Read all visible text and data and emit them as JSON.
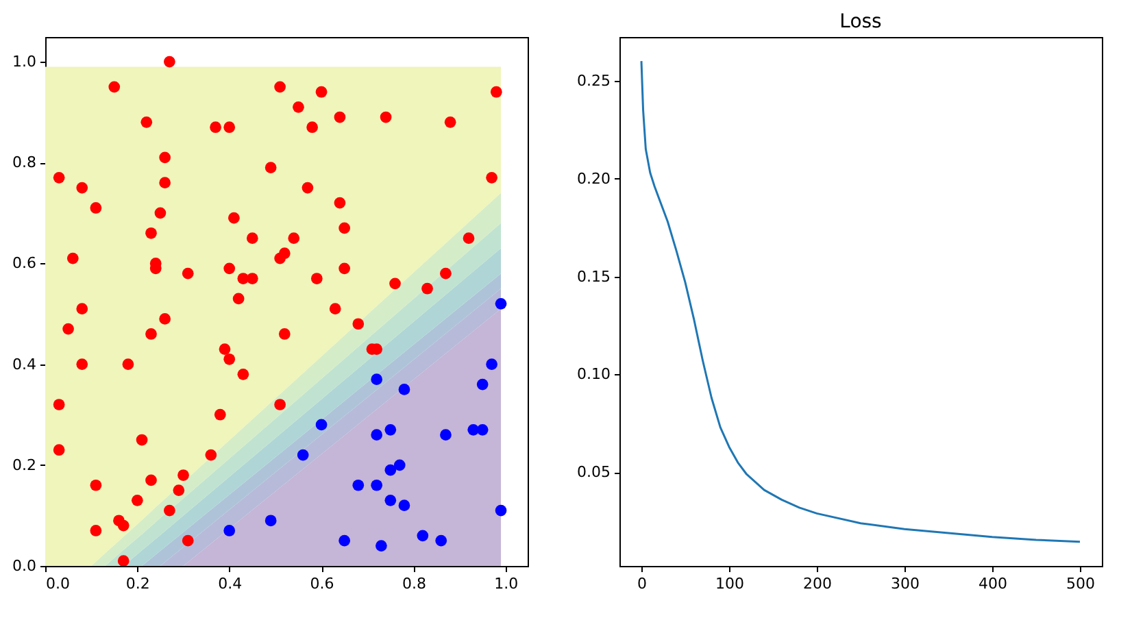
{
  "chart_data": [
    {
      "type": "scatter",
      "stacked": true,
      "grid": false,
      "xlim": [
        0,
        1.048
      ],
      "ylim": [
        0,
        1.049
      ],
      "xticks": [
        {
          "value": 0,
          "label": "0.0"
        },
        0.2,
        0.4,
        0.6,
        0.8,
        {
          "value": 1,
          "label": "1.0"
        }
      ],
      "yticks": [
        {
          "value": 0,
          "label": "0.0"
        },
        0.2,
        0.4,
        0.6,
        0.8,
        {
          "value": 1,
          "label": "1.0"
        }
      ],
      "series": [
        {
          "type": "area",
          "color": "#c5b5d6",
          "x": [
            0,
            0.1,
            0.13,
            0.17,
            0.21,
            0.25,
            0.3,
            0.99
          ],
          "values": [
            0,
            0,
            0,
            0,
            0,
            0,
            0,
            0.51
          ]
        },
        {
          "type": "area",
          "color": "#b7bad8",
          "x": [
            0,
            0.1,
            0.13,
            0.17,
            0.21,
            0.25,
            0.3,
            0.99
          ],
          "values": [
            0,
            0,
            0,
            0,
            0,
            0,
            0.037,
            0.04
          ]
        },
        {
          "type": "area",
          "color": "#aec3d8",
          "x": [
            0,
            0.1,
            0.13,
            0.17,
            0.21,
            0.25,
            0.3,
            0.99
          ],
          "values": [
            0,
            0,
            0,
            0,
            0,
            0.03,
            0.03,
            0.03
          ]
        },
        {
          "type": "area",
          "color": "#afd5d6",
          "x": [
            0,
            0.1,
            0.13,
            0.17,
            0.21,
            0.25,
            0.3,
            0.99
          ],
          "values": [
            0,
            0,
            0,
            0,
            0.031,
            0.031,
            0.033,
            0.05
          ]
        },
        {
          "type": "area",
          "color": "#bfe3d0",
          "x": [
            0,
            0.1,
            0.13,
            0.17,
            0.21,
            0.25,
            0.3,
            0.99
          ],
          "values": [
            0,
            0,
            0,
            0.032,
            0.032,
            0.034,
            0.034,
            0.05
          ]
        },
        {
          "type": "area",
          "color": "#d5ecc8",
          "x": [
            0,
            0.1,
            0.13,
            0.17,
            0.21,
            0.25,
            0.3,
            0.99
          ],
          "values": [
            0,
            0,
            0.025,
            0.026,
            0.028,
            0.03,
            0.032,
            0.06
          ]
        },
        {
          "type": "area",
          "color": "#eff5bb",
          "x": [
            0,
            0.1,
            0.13,
            0.17,
            0.21,
            0.25,
            0.3,
            0.99
          ],
          "values": [
            0.99,
            0.99,
            0.965,
            0.932,
            0.899,
            0.865,
            0.824,
            0.25
          ]
        },
        {
          "type": "scatter",
          "marker": "circle",
          "color": "#ff0000",
          "x": [
            0.27,
            0.15,
            0.51,
            0.6,
            0.98,
            0.55,
            0.22,
            0.37,
            0.4,
            0.58,
            0.64,
            0.74,
            0.88,
            0.26,
            0.49,
            0.03,
            0.08,
            0.26,
            0.57,
            0.97,
            0.11,
            0.25,
            0.41,
            0.64,
            0.23,
            0.45,
            0.54,
            0.65,
            0.92,
            0.06,
            0.52,
            0.51,
            0.24,
            0.24,
            0.31,
            0.4,
            0.43,
            0.45,
            0.59,
            0.65,
            0.76,
            0.83,
            0.87,
            0.08,
            0.05,
            0.26,
            0.23,
            0.42,
            0.52,
            0.63,
            0.68,
            0.08,
            0.18,
            0.39,
            0.4,
            0.43,
            0.72,
            0.71,
            0.03,
            0.03,
            0.51,
            0.38,
            0.21,
            0.36,
            0.11,
            0.23,
            0.3,
            0.29,
            0.2,
            0.27,
            0.16,
            0.17,
            0.11,
            0.31,
            0.17
          ],
          "values": [
            1.0,
            0.95,
            0.95,
            0.94,
            0.94,
            0.91,
            0.88,
            0.87,
            0.87,
            0.87,
            0.89,
            0.89,
            0.88,
            0.81,
            0.79,
            0.77,
            0.75,
            0.76,
            0.75,
            0.77,
            0.71,
            0.7,
            0.69,
            0.72,
            0.66,
            0.65,
            0.65,
            0.67,
            0.65,
            0.61,
            0.62,
            0.61,
            0.6,
            0.59,
            0.58,
            0.59,
            0.57,
            0.57,
            0.57,
            0.59,
            0.56,
            0.55,
            0.58,
            0.51,
            0.47,
            0.49,
            0.46,
            0.53,
            0.46,
            0.51,
            0.48,
            0.4,
            0.4,
            0.43,
            0.41,
            0.38,
            0.43,
            0.43,
            0.32,
            0.23,
            0.32,
            0.3,
            0.25,
            0.22,
            0.16,
            0.17,
            0.18,
            0.15,
            0.13,
            0.11,
            0.09,
            0.08,
            0.07,
            0.05,
            0.01
          ]
        },
        {
          "type": "scatter",
          "marker": "circle",
          "color": "#0000ff",
          "x": [
            0.4,
            0.49,
            0.6,
            0.56,
            0.72,
            0.78,
            0.72,
            0.75,
            0.68,
            0.72,
            0.75,
            0.77,
            0.75,
            0.78,
            0.87,
            0.93,
            0.95,
            0.95,
            0.97,
            0.99,
            0.99,
            0.65,
            0.73,
            0.82,
            0.86
          ],
          "values": [
            0.07,
            0.09,
            0.28,
            0.22,
            0.37,
            0.35,
            0.26,
            0.27,
            0.16,
            0.16,
            0.19,
            0.2,
            0.13,
            0.12,
            0.26,
            0.27,
            0.27,
            0.36,
            0.4,
            0.52,
            0.11,
            0.05,
            0.04,
            0.06,
            0.05
          ]
        }
      ]
    },
    {
      "type": "line",
      "title": "Loss",
      "grid": false,
      "marker": "none",
      "line_style": "solid",
      "xlim": [
        -25,
        525
      ],
      "ylim": [
        0.0022,
        0.2723
      ],
      "xticks": [
        0,
        100,
        200,
        300,
        400,
        500
      ],
      "yticks": [
        0.05,
        {
          "value": 0.1,
          "label": "0.10"
        },
        0.15,
        {
          "value": 0.2,
          "label": "0.20"
        },
        0.25
      ],
      "series": [
        {
          "color": "#1f77b4",
          "x": [
            0,
            2,
            5,
            10,
            15,
            20,
            30,
            40,
            50,
            60,
            70,
            80,
            90,
            100,
            110,
            120,
            140,
            160,
            180,
            200,
            250,
            300,
            350,
            400,
            450,
            500
          ],
          "values": [
            0.26,
            0.235,
            0.215,
            0.203,
            0.196,
            0.19,
            0.178,
            0.163,
            0.147,
            0.128,
            0.107,
            0.088,
            0.073,
            0.063,
            0.055,
            0.049,
            0.041,
            0.036,
            0.032,
            0.029,
            0.024,
            0.021,
            0.019,
            0.017,
            0.0155,
            0.0145
          ]
        }
      ]
    }
  ]
}
